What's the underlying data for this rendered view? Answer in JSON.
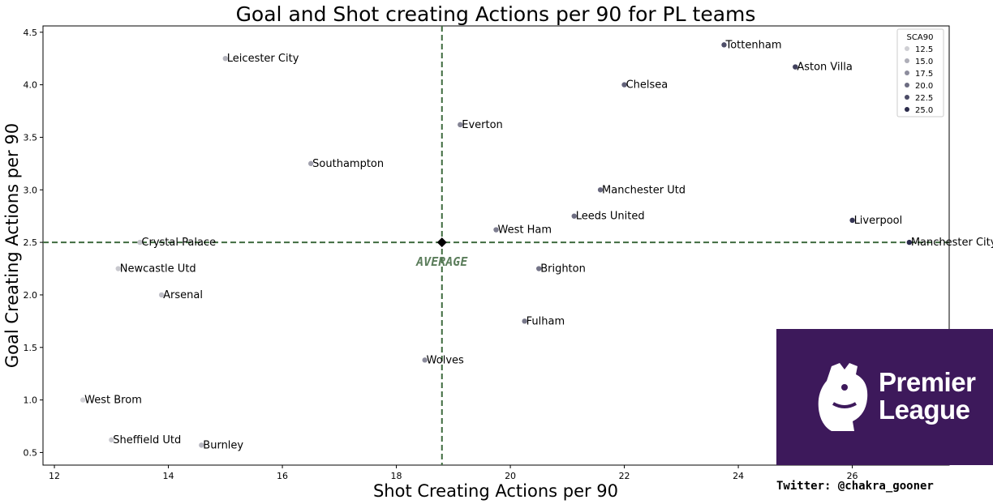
{
  "chart_data": {
    "type": "scatter",
    "title": "Goal and Shot creating Actions per 90 for PL teams",
    "xlabel": "Shot Creating Actions per 90",
    "ylabel": "Goal Creating Actions per 90",
    "xlim": [
      11.8,
      27.7
    ],
    "ylim": [
      0.38,
      4.56
    ],
    "xticks": [
      12,
      14,
      16,
      18,
      20,
      22,
      24,
      26
    ],
    "yticks": [
      0.5,
      1.0,
      1.5,
      2.0,
      2.5,
      3.0,
      3.5,
      4.0,
      4.5
    ],
    "average": {
      "x": 18.8,
      "y": 2.5,
      "label": "AVERAGE"
    },
    "legend": {
      "title": "SCA90",
      "placement": "top-right",
      "entries": [
        "12.5",
        "15.0",
        "17.5",
        "20.0",
        "22.5",
        "25.0"
      ]
    },
    "points": [
      {
        "team": "Tottenham",
        "x": 23.75,
        "y": 4.38
      },
      {
        "team": "Aston Villa",
        "x": 25.0,
        "y": 4.17
      },
      {
        "team": "Leicester City",
        "x": 15.0,
        "y": 4.25
      },
      {
        "team": "Chelsea",
        "x": 22.0,
        "y": 4.0
      },
      {
        "team": "Everton",
        "x": 19.12,
        "y": 3.62
      },
      {
        "team": "Southampton",
        "x": 16.5,
        "y": 3.25
      },
      {
        "team": "Manchester Utd",
        "x": 21.58,
        "y": 3.0
      },
      {
        "team": "Leeds United",
        "x": 21.12,
        "y": 2.75
      },
      {
        "team": "Liverpool",
        "x": 26.0,
        "y": 2.71
      },
      {
        "team": "West Ham",
        "x": 19.75,
        "y": 2.62
      },
      {
        "team": "Crystal Palace",
        "x": 13.5,
        "y": 2.5
      },
      {
        "team": "Manchester City",
        "x": 27.0,
        "y": 2.5
      },
      {
        "team": "Newcastle Utd",
        "x": 13.12,
        "y": 2.25
      },
      {
        "team": "Brighton",
        "x": 20.5,
        "y": 2.25
      },
      {
        "team": "Arsenal",
        "x": 13.88,
        "y": 2.0
      },
      {
        "team": "Fulham",
        "x": 20.25,
        "y": 1.75
      },
      {
        "team": "Wolves",
        "x": 18.5,
        "y": 1.38
      },
      {
        "team": "West Brom",
        "x": 12.5,
        "y": 1.0
      },
      {
        "team": "Sheffield Utd",
        "x": 13.0,
        "y": 0.62
      },
      {
        "team": "Burnley",
        "x": 14.58,
        "y": 0.57
      }
    ],
    "colors": {
      "low": "#cfcfd4",
      "high": "#2a2a4a",
      "average_line": "#3f6b3f"
    }
  },
  "logo": {
    "line1": "Premier",
    "line2": "League",
    "background": "#3d195b"
  },
  "credit": "Twitter: @chakra_gooner"
}
